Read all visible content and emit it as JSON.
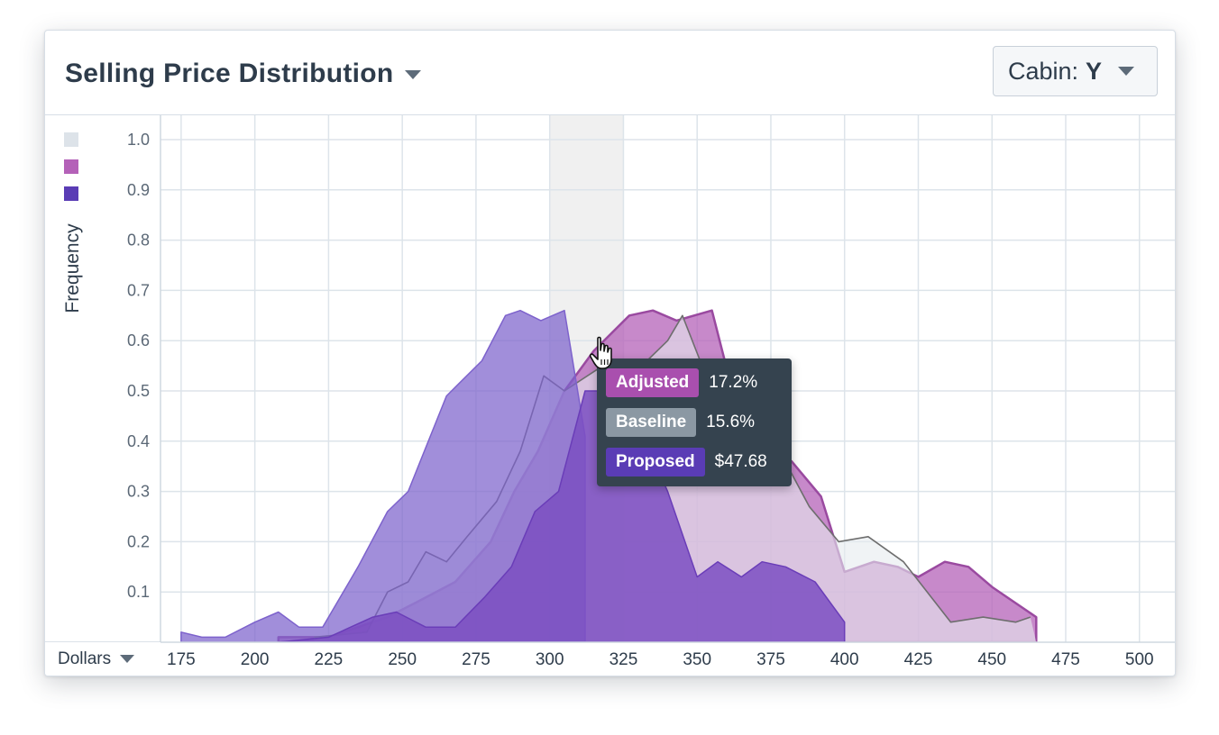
{
  "header": {
    "title": "Selling Price Distribution",
    "cabin_label": "Cabin:",
    "cabin_value": "Y"
  },
  "x_unit_selector": "Dollars",
  "tooltip": {
    "rows": [
      {
        "label": "Adjusted",
        "value": "17.2%",
        "color": "#a94fae"
      },
      {
        "label": "Baseline",
        "value": "15.6%",
        "color": "#8b98a3"
      },
      {
        "label": "Proposed",
        "value": "$47.68",
        "color": "#5a3cb5"
      }
    ]
  },
  "colors": {
    "adjusted": "#b461b8",
    "baseline": "#e6ebef",
    "proposed": "#7d62cc",
    "proposed_front": "#7b4fc2",
    "highlight_band": "#f0f0f0",
    "grid": "#dde4ea"
  },
  "chart_data": {
    "type": "area",
    "title": "Selling Price Distribution",
    "xlabel": "Dollars",
    "ylabel": "Frequency",
    "xlim": [
      168,
      512
    ],
    "ylim": [
      0,
      1.05
    ],
    "x_ticks": [
      175,
      200,
      225,
      250,
      275,
      300,
      325,
      350,
      375,
      400,
      425,
      450,
      475,
      500
    ],
    "y_ticks": [
      0.1,
      0.2,
      0.3,
      0.4,
      0.5,
      0.6,
      0.7,
      0.8,
      0.9,
      1.0
    ],
    "grid": true,
    "legend_position": "top-left",
    "highlighted_range": [
      300,
      325
    ],
    "series": [
      {
        "key": "adjusted",
        "fill": "#b461b8",
        "points": [
          [
            208,
            0.01
          ],
          [
            225,
            0.01
          ],
          [
            245,
            0.05
          ],
          [
            255,
            0.08
          ],
          [
            268,
            0.12
          ],
          [
            280,
            0.2
          ],
          [
            288,
            0.3
          ],
          [
            296,
            0.38
          ],
          [
            305,
            0.5
          ],
          [
            315,
            0.58
          ],
          [
            327,
            0.65
          ],
          [
            335,
            0.66
          ],
          [
            343,
            0.64
          ],
          [
            355,
            0.66
          ],
          [
            362,
            0.5
          ],
          [
            370,
            0.4
          ],
          [
            382,
            0.36
          ],
          [
            392,
            0.29
          ],
          [
            400,
            0.14
          ],
          [
            410,
            0.16
          ],
          [
            418,
            0.15
          ],
          [
            425,
            0.13
          ],
          [
            434,
            0.16
          ],
          [
            442,
            0.15
          ],
          [
            450,
            0.11
          ],
          [
            465,
            0.05
          ],
          [
            465,
            0.0
          ],
          [
            208,
            0.0
          ]
        ]
      },
      {
        "key": "baseline",
        "fill": "#e6ebef",
        "points": [
          [
            220,
            0.01
          ],
          [
            238,
            0.02
          ],
          [
            245,
            0.1
          ],
          [
            252,
            0.12
          ],
          [
            258,
            0.18
          ],
          [
            265,
            0.16
          ],
          [
            272,
            0.21
          ],
          [
            282,
            0.28
          ],
          [
            290,
            0.38
          ],
          [
            298,
            0.53
          ],
          [
            305,
            0.5
          ],
          [
            318,
            0.55
          ],
          [
            333,
            0.56
          ],
          [
            340,
            0.6
          ],
          [
            345,
            0.65
          ],
          [
            355,
            0.5
          ],
          [
            365,
            0.38
          ],
          [
            378,
            0.38
          ],
          [
            388,
            0.27
          ],
          [
            398,
            0.2
          ],
          [
            408,
            0.21
          ],
          [
            420,
            0.16
          ],
          [
            436,
            0.04
          ],
          [
            447,
            0.05
          ],
          [
            458,
            0.04
          ],
          [
            463,
            0.05
          ],
          [
            465,
            0.0
          ],
          [
            220,
            0.0
          ]
        ]
      },
      {
        "key": "proposed",
        "fill": "#7d62cc",
        "points": [
          [
            175,
            0.02
          ],
          [
            182,
            0.01
          ],
          [
            190,
            0.01
          ],
          [
            200,
            0.04
          ],
          [
            208,
            0.06
          ],
          [
            215,
            0.03
          ],
          [
            223,
            0.03
          ],
          [
            235,
            0.15
          ],
          [
            245,
            0.26
          ],
          [
            252,
            0.3
          ],
          [
            265,
            0.49
          ],
          [
            277,
            0.56
          ],
          [
            285,
            0.65
          ],
          [
            290,
            0.66
          ],
          [
            297,
            0.64
          ],
          [
            305,
            0.66
          ],
          [
            312,
            0.41
          ],
          [
            312,
            0.0
          ],
          [
            175,
            0.0
          ]
        ]
      },
      {
        "key": "proposed",
        "fill": "#7b4fc2",
        "points": [
          [
            208,
            0.0
          ],
          [
            225,
            0.01
          ],
          [
            240,
            0.05
          ],
          [
            248,
            0.06
          ],
          [
            258,
            0.03
          ],
          [
            268,
            0.03
          ],
          [
            278,
            0.09
          ],
          [
            287,
            0.15
          ],
          [
            295,
            0.26
          ],
          [
            303,
            0.3
          ],
          [
            312,
            0.5
          ],
          [
            325,
            0.5
          ],
          [
            340,
            0.3
          ],
          [
            350,
            0.13
          ],
          [
            357,
            0.16
          ],
          [
            365,
            0.13
          ],
          [
            372,
            0.16
          ],
          [
            380,
            0.15
          ],
          [
            390,
            0.12
          ],
          [
            400,
            0.04
          ],
          [
            400,
            0.0
          ],
          [
            208,
            0.0
          ]
        ]
      }
    ],
    "legend_swatches": [
      "#dde3e9",
      "#b461b8",
      "#5a3cb5"
    ]
  }
}
